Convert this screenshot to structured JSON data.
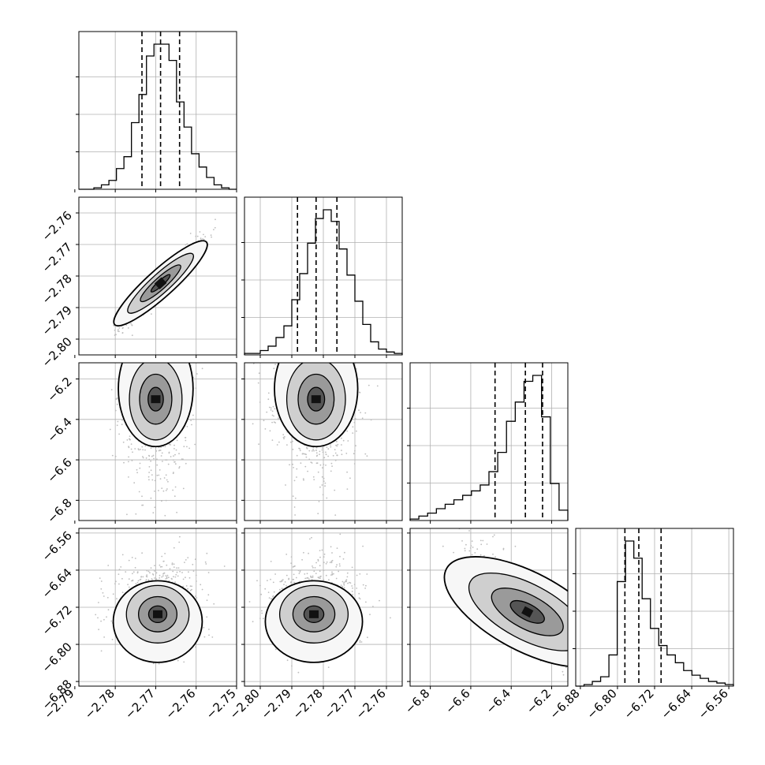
{
  "chart_data": {
    "type": "corner",
    "grid": true,
    "parameters": 4,
    "quantile_lines": "dashed",
    "colors": {
      "axis": "#000000",
      "grid": "#b0b0b0",
      "hist": "#000000",
      "scatter": "#bdbdbd",
      "density": [
        "#f7f7f7",
        "#cfcfcf",
        "#9a9a9a",
        "#555555",
        "#111111"
      ]
    },
    "params": [
      {
        "range": [
          -2.789,
          -2.75
        ],
        "ticks": [
          "-2.79",
          "-2.78",
          "-2.77",
          "-2.76",
          "-2.75"
        ],
        "tick_values": [
          -2.79,
          -2.78,
          -2.77,
          -2.76,
          -2.75
        ],
        "quantiles": [
          -2.7734,
          -2.7688,
          -2.7641
        ],
        "hist": [
          0.0,
          0.0,
          0.01,
          0.03,
          0.06,
          0.14,
          0.22,
          0.45,
          0.64,
          0.9,
          0.98,
          0.98,
          0.87,
          0.59,
          0.42,
          0.24,
          0.15,
          0.08,
          0.03,
          0.01,
          0.0
        ]
      },
      {
        "range": [
          -2.805,
          -2.755
        ],
        "ticks": [
          "-2.80",
          "-2.79",
          "-2.78",
          "-2.77",
          "-2.76"
        ],
        "tick_values": [
          -2.8,
          -2.79,
          -2.78,
          -2.77,
          -2.76
        ],
        "quantiles": [
          -2.7882,
          -2.7823,
          -2.7757
        ],
        "hist": [
          0.01,
          0.01,
          0.03,
          0.06,
          0.12,
          0.2,
          0.38,
          0.56,
          0.77,
          0.94,
          1.0,
          0.92,
          0.73,
          0.55,
          0.37,
          0.21,
          0.09,
          0.04,
          0.02,
          0.01
        ]
      },
      {
        "range": [
          -6.9,
          -6.12
        ],
        "ticks": [
          "-6.8",
          "-6.6",
          "-6.4",
          "-6.2"
        ],
        "tick_values": [
          -6.8,
          -6.6,
          -6.4,
          -6.2
        ],
        "quantiles": [
          -6.48,
          -6.33,
          -6.245
        ],
        "hist": [
          0.01,
          0.03,
          0.05,
          0.08,
          0.11,
          0.14,
          0.17,
          0.2,
          0.24,
          0.33,
          0.46,
          0.67,
          0.8,
          0.94,
          0.98,
          0.7,
          0.25,
          0.07
        ]
      },
      {
        "range": [
          -6.89,
          -6.55
        ],
        "ticks": [
          "-6.88",
          "-6.80",
          "-6.72",
          "-6.64",
          "-6.56"
        ],
        "tick_values": [
          -6.88,
          -6.8,
          -6.72,
          -6.64,
          -6.56
        ],
        "quantiles": [
          -6.784,
          -6.754,
          -6.706
        ],
        "hist": [
          0.0,
          0.01,
          0.03,
          0.06,
          0.2,
          0.67,
          0.93,
          0.82,
          0.56,
          0.37,
          0.26,
          0.2,
          0.15,
          0.1,
          0.07,
          0.05,
          0.03,
          0.02,
          0.01
        ]
      }
    ],
    "pairs": [
      {
        "row": 1,
        "col": 0,
        "mean": [
          -2.7688,
          -2.7823
        ],
        "sd": [
          0.0045,
          0.0062
        ],
        "rho": 0.96,
        "skew": 0
      },
      {
        "row": 2,
        "col": 0,
        "mean": [
          -2.77,
          -6.3
        ],
        "sd": [
          0.0042,
          0.13
        ],
        "rho": 0.0,
        "skew": -1
      },
      {
        "row": 2,
        "col": 1,
        "mean": [
          -2.7823,
          -6.3
        ],
        "sd": [
          0.006,
          0.13
        ],
        "rho": 0.0,
        "skew": -1
      },
      {
        "row": 3,
        "col": 0,
        "mean": [
          -2.7695,
          -6.735
        ],
        "sd": [
          0.005,
          0.04
        ],
        "rho": 0.0,
        "skew": 1
      },
      {
        "row": 3,
        "col": 1,
        "mean": [
          -2.783,
          -6.735
        ],
        "sd": [
          0.007,
          0.04
        ],
        "rho": 0.0,
        "skew": 1
      },
      {
        "row": 3,
        "col": 2,
        "mean": [
          -6.32,
          -6.73
        ],
        "sd": [
          0.14,
          0.06
        ],
        "rho": -0.85,
        "skew": 0
      }
    ]
  }
}
